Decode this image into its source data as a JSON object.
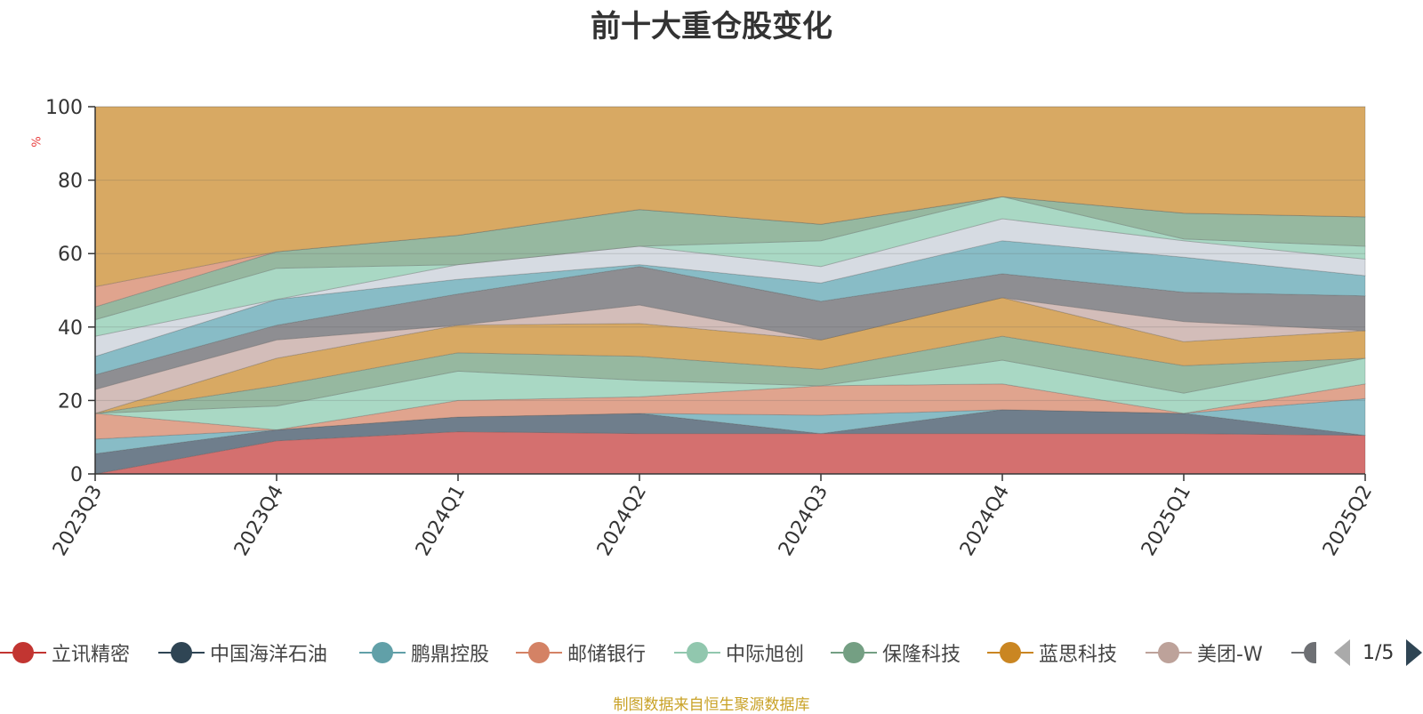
{
  "chart_data": {
    "type": "area",
    "title": "前十大重仓股变化",
    "ylabel": "%",
    "xlabel": "",
    "stacked": true,
    "ylim": [
      0,
      100
    ],
    "yticks": [
      0,
      20,
      40,
      60,
      80,
      100
    ],
    "grid": true,
    "legend_position": "bottom",
    "categories": [
      "2023Q3",
      "2023Q4",
      "2024Q1",
      "2024Q2",
      "2024Q3",
      "2024Q4",
      "2025Q1",
      "2025Q2"
    ],
    "series": [
      {
        "name": "立讯精密",
        "color": "#d4706f",
        "values": [
          0,
          9,
          11.5,
          11,
          11,
          11,
          11,
          10.5
        ]
      },
      {
        "name": "中国海洋石油",
        "color": "#6f7e8c",
        "values": [
          0,
          0,
          4,
          5.5,
          0,
          0,
          0,
          0
        ]
      },
      {
        "name": "鹏鼎控股",
        "color": "#88bcc6",
        "values": [
          0,
          0,
          0,
          0,
          0,
          6.5,
          5.5,
          0
        ]
      },
      {
        "name": "邮储银行",
        "color": "#e0a48e",
        "values": [
          0,
          0,
          0,
          0,
          5,
          0,
          0,
          0
        ]
      },
      {
        "name": "中际旭创",
        "color": "#a9d8c4",
        "values": [
          0,
          3,
          0,
          5,
          8,
          7,
          0,
          10
        ]
      },
      {
        "name": "保隆科技",
        "color": "#96b8a0",
        "values": [
          5.5,
          0,
          0,
          0,
          0,
          0,
          0,
          0
        ]
      },
      {
        "name": "蓝思科技",
        "color": "#d8a963",
        "values": [
          0,
          0,
          0,
          0,
          0,
          0,
          0,
          4
        ]
      },
      {
        "name": "美团-W",
        "color": "#d3bdb9",
        "values": [
          0,
          0,
          0,
          0,
          0,
          6,
          0,
          0
        ]
      },
      {
        "name": "",
        "color": "#8e8e92",
        "values": [
          4,
          0,
          0,
          0,
          0,
          0,
          0,
          0
        ]
      }
    ],
    "stack_color_cycle": [
      "#d4706f",
      "#6f7e8c",
      "#88bcc6",
      "#e0a48e",
      "#a9d8c4",
      "#96b8a0",
      "#d8a963",
      "#d3bdb9",
      "#8e8e92",
      "#d6dbe2"
    ],
    "stack_boundaries": [
      [
        0,
        0,
        0,
        0,
        0,
        0,
        0,
        0
      ],
      [
        0,
        9,
        11.5,
        11,
        11,
        11,
        11,
        10.5
      ],
      [
        5.5,
        12,
        15.5,
        16.5,
        11,
        17.5,
        16.5,
        10.5
      ],
      [
        9.5,
        12,
        15.5,
        16.5,
        16,
        17.5,
        16.5,
        20.5
      ],
      [
        16.5,
        12,
        20,
        21,
        24,
        24.5,
        16.5,
        24.5
      ],
      [
        16.5,
        18.5,
        28,
        25.5,
        24,
        31,
        22,
        31.5
      ],
      [
        16.5,
        24,
        33,
        32,
        28.5,
        37.5,
        29.5,
        31.5
      ],
      [
        16.5,
        31.5,
        40.5,
        41,
        36.5,
        48,
        36,
        39
      ],
      [
        23,
        36.5,
        40.5,
        46,
        36.5,
        48,
        41.5,
        39
      ],
      [
        27,
        40.5,
        49,
        56.5,
        47,
        54.5,
        49.5,
        48.5
      ],
      [
        32,
        47.5,
        53,
        57,
        52,
        63.5,
        59,
        54
      ],
      [
        37.5,
        47.5,
        57,
        62,
        56.5,
        69.5,
        63.5,
        58.5
      ],
      [
        42,
        56,
        57,
        62,
        63.5,
        75.5,
        64,
        62
      ],
      [
        45.5,
        60.5,
        65,
        72,
        68,
        75.5,
        71,
        70
      ],
      [
        51,
        60.5,
        65,
        72,
        68,
        75.5,
        71,
        70
      ],
      [
        100,
        100,
        100,
        100,
        100,
        100,
        100,
        100
      ]
    ],
    "stack_band_colors": [
      "#d4706f",
      "#6f7e8c",
      "#88bcc6",
      "#e0a48e",
      "#a9d8c4",
      "#96b8a0",
      "#d8a963",
      "#d3bdb9",
      "#8e8e92",
      "#88bcc6",
      "#d6dbe2",
      "#a9d8c4",
      "#96b8a0",
      "#e0a48e",
      "#d8a963"
    ]
  },
  "legend": {
    "items": [
      {
        "label": "立讯精密",
        "color": "#c23531"
      },
      {
        "label": "中国海洋石油",
        "color": "#2f4554"
      },
      {
        "label": "鹏鼎控股",
        "color": "#61a0a8"
      },
      {
        "label": "邮储银行",
        "color": "#d48265"
      },
      {
        "label": "中际旭创",
        "color": "#91c7ae"
      },
      {
        "label": "保隆科技",
        "color": "#749f83"
      },
      {
        "label": "蓝思科技",
        "color": "#ca8622"
      },
      {
        "label": "美团-W",
        "color": "#bda29a"
      }
    ],
    "truncated_color": "#6e7074",
    "page_text": "1/5"
  },
  "source_note": "制图数据来自恒生聚源数据库"
}
